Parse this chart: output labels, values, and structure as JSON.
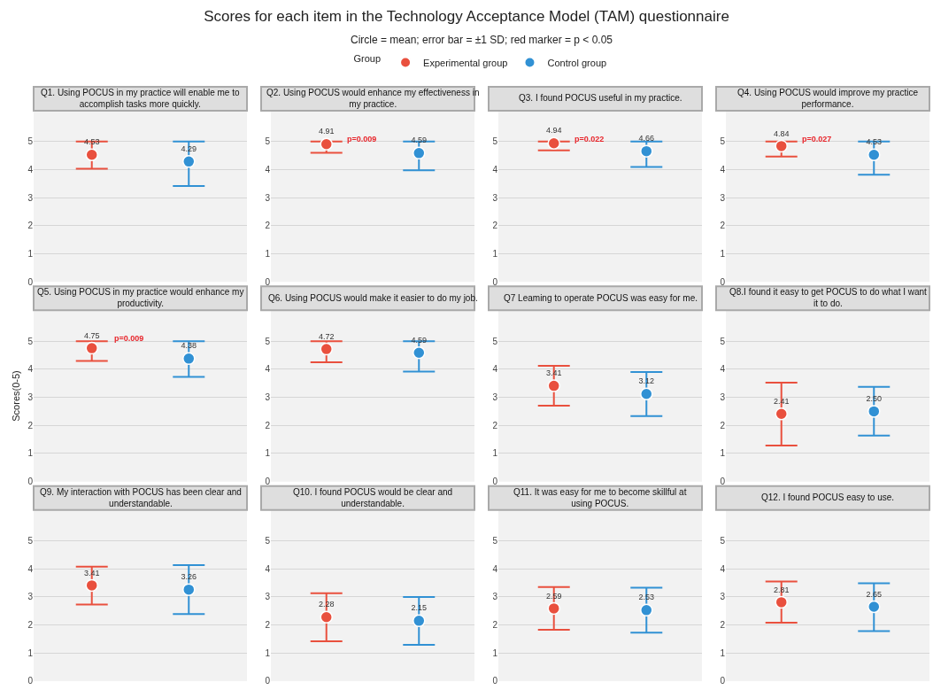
{
  "chart_data": [
    {
      "type": "other",
      "title": "Scores for each item in the Technology Acceptance Model (TAM) questionnaire",
      "subtitle": "Circle = mean; error bar = ±1 SD; red marker = p < 0.05"
    },
    {
      "type": "scatter",
      "title": "Q1. Using POCUS in my practice will enable me to accomplish tasks more quickly.",
      "categories": [
        null,
        null
      ],
      "legend_title": "Group",
      "legend": "top",
      "marker": "circle",
      "grid": "y",
      "data_labels": true,
      "ylim": [
        0,
        6.1
      ],
      "yticks": [
        0,
        1,
        2,
        3,
        4,
        5
      ],
      "series": [
        {
          "name": "Experimental group",
          "color": "#e9503e",
          "values": [
            4.53,
            null
          ],
          "errors": [
            [
              4.03,
              5
            ],
            null
          ]
        },
        {
          "name": "Control group",
          "color": "#3191d4",
          "values": [
            null,
            4.29
          ],
          "errors": [
            null,
            [
              3.42,
              5
            ]
          ]
        }
      ]
    },
    {
      "type": "scatter",
      "title": "Q2. Using POCUS would enhance my effectiveness in my practice.",
      "categories": [
        null,
        null
      ],
      "marker": "circle",
      "grid": "y",
      "data_labels": true,
      "ylim": [
        0,
        6.1
      ],
      "yticks": [
        0,
        1,
        2,
        3,
        4,
        5
      ],
      "annotations": [
        "p=0.009"
      ],
      "series": [
        {
          "name": "Experimental group",
          "color": "#e9503e",
          "values": [
            4.91,
            null
          ],
          "errors": [
            [
              4.6,
              5
            ],
            null
          ]
        },
        {
          "name": "Control group",
          "color": "#3191d4",
          "values": [
            null,
            4.59
          ],
          "errors": [
            null,
            [
              3.98,
              5
            ]
          ]
        }
      ]
    },
    {
      "type": "scatter",
      "title": "Q3. I found POCUS useful in my practice.",
      "categories": [
        null,
        null
      ],
      "marker": "circle",
      "grid": "y",
      "data_labels": true,
      "ylim": [
        0,
        6.1
      ],
      "yticks": [
        0,
        1,
        2,
        3,
        4,
        5
      ],
      "annotations": [
        "p=0.022"
      ],
      "series": [
        {
          "name": "Experimental group",
          "color": "#e9503e",
          "values": [
            4.94,
            null
          ],
          "errors": [
            [
              4.69,
              5
            ],
            null
          ]
        },
        {
          "name": "Control group",
          "color": "#3191d4",
          "values": [
            null,
            4.66
          ],
          "errors": [
            null,
            [
              4.1,
              5
            ]
          ]
        }
      ]
    },
    {
      "type": "scatter",
      "title": "Q4. Using POCUS would improve my practice performance.",
      "categories": [
        null,
        null
      ],
      "marker": "circle",
      "grid": "y",
      "data_labels": true,
      "ylim": [
        0,
        6.1
      ],
      "yticks": [
        0,
        1,
        2,
        3,
        4,
        5
      ],
      "annotations": [
        "p=0.027"
      ],
      "series": [
        {
          "name": "Experimental group",
          "color": "#e9503e",
          "values": [
            4.84,
            null
          ],
          "errors": [
            [
              4.47,
              5
            ],
            null
          ]
        },
        {
          "name": "Control group",
          "color": "#3191d4",
          "values": [
            null,
            4.53
          ],
          "errors": [
            null,
            [
              3.82,
              5
            ]
          ]
        }
      ]
    },
    {
      "type": "scatter",
      "title": "Q5. Using POCUS in my practice would enhance my productivity.",
      "categories": [
        null,
        null
      ],
      "ylabel": "Scores(0-5)",
      "marker": "circle",
      "grid": "y",
      "data_labels": true,
      "ylim": [
        0,
        6.1
      ],
      "yticks": [
        0,
        1,
        2,
        3,
        4,
        5
      ],
      "annotations": [
        "p=0.009"
      ],
      "series": [
        {
          "name": "Experimental group",
          "color": "#e9503e",
          "values": [
            4.75,
            null
          ],
          "errors": [
            [
              4.3,
              5
            ],
            null
          ]
        },
        {
          "name": "Control group",
          "color": "#3191d4",
          "values": [
            null,
            4.38
          ],
          "errors": [
            null,
            [
              3.73,
              5
            ]
          ]
        }
      ]
    },
    {
      "type": "scatter",
      "title": "Q6. Using POCUS would make it easier to do my job.",
      "categories": [
        null,
        null
      ],
      "marker": "circle",
      "grid": "y",
      "data_labels": true,
      "ylim": [
        0,
        6.1
      ],
      "yticks": [
        0,
        1,
        2,
        3,
        4,
        5
      ],
      "series": [
        {
          "name": "Experimental group",
          "color": "#e9503e",
          "values": [
            4.72,
            null
          ],
          "errors": [
            [
              4.25,
              5
            ],
            null
          ]
        },
        {
          "name": "Control group",
          "color": "#3191d4",
          "values": [
            null,
            4.59
          ],
          "errors": [
            null,
            [
              3.92,
              5
            ]
          ]
        }
      ]
    },
    {
      "type": "scatter",
      "title": "Q7 Leaming to operate POCUS was easy for me.",
      "categories": [
        null,
        null
      ],
      "marker": "circle",
      "grid": "y",
      "data_labels": true,
      "ylim": [
        0,
        6.1
      ],
      "yticks": [
        0,
        1,
        2,
        3,
        4,
        5
      ],
      "series": [
        {
          "name": "Experimental group",
          "color": "#e9503e",
          "values": [
            3.41,
            null
          ],
          "errors": [
            [
              2.7,
              4.12
            ],
            null
          ]
        },
        {
          "name": "Control group",
          "color": "#3191d4",
          "values": [
            null,
            3.12
          ],
          "errors": [
            null,
            [
              2.33,
              3.9
            ]
          ]
        }
      ]
    },
    {
      "type": "scatter",
      "title": "Q8.I found it easy to get POCUS to do what I want it to do.",
      "categories": [
        null,
        null
      ],
      "marker": "circle",
      "grid": "y",
      "ylim": [
        0,
        6.1
      ],
      "yticks": [
        0,
        1,
        2,
        3,
        4,
        5
      ],
      "series": [
        {
          "name": "Experimental group",
          "color": "#e9503e",
          "values": [
            2.41,
            null
          ],
          "value_labels": [
            "2.41",
            null
          ],
          "errors": [
            [
              1.28,
              3.52
            ],
            null
          ]
        },
        {
          "name": "Control group",
          "color": "#3191d4",
          "values": [
            null,
            2.5
          ],
          "value_labels": [
            null,
            "2.50"
          ],
          "errors": [
            null,
            [
              1.64,
              3.37
            ]
          ]
        }
      ]
    },
    {
      "type": "scatter",
      "title": "Q9. My interaction with POCUS has been clear and understandable.",
      "categories": [
        null,
        null
      ],
      "marker": "circle",
      "grid": "y",
      "data_labels": true,
      "ylim": [
        0,
        6.1
      ],
      "yticks": [
        0,
        1,
        2,
        3,
        4,
        5
      ],
      "series": [
        {
          "name": "Experimental group",
          "color": "#e9503e",
          "values": [
            3.41,
            null
          ],
          "errors": [
            [
              2.73,
              4.08
            ],
            null
          ]
        },
        {
          "name": "Control group",
          "color": "#3191d4",
          "values": [
            null,
            3.26
          ],
          "errors": [
            null,
            [
              2.39,
              4.13
            ]
          ]
        }
      ]
    },
    {
      "type": "scatter",
      "title": "Q10. I found POCUS would be clear and understandable.",
      "categories": [
        null,
        null
      ],
      "marker": "circle",
      "grid": "y",
      "data_labels": true,
      "ylim": [
        0,
        6.1
      ],
      "yticks": [
        0,
        1,
        2,
        3,
        4,
        5
      ],
      "series": [
        {
          "name": "Experimental group",
          "color": "#e9503e",
          "values": [
            2.28,
            null
          ],
          "errors": [
            [
              1.42,
              3.13
            ],
            null
          ]
        },
        {
          "name": "Control group",
          "color": "#3191d4",
          "values": [
            null,
            2.15
          ],
          "errors": [
            null,
            [
              1.29,
              3.0
            ]
          ]
        }
      ]
    },
    {
      "type": "scatter",
      "title": "Q11. It was easy for me to become skillful at using POCUS.",
      "categories": [
        null,
        null
      ],
      "marker": "circle",
      "grid": "y",
      "data_labels": true,
      "ylim": [
        0,
        6.1
      ],
      "yticks": [
        0,
        1,
        2,
        3,
        4,
        5
      ],
      "series": [
        {
          "name": "Experimental group",
          "color": "#e9503e",
          "values": [
            2.59,
            null
          ],
          "errors": [
            [
              1.83,
              3.35
            ],
            null
          ]
        },
        {
          "name": "Control group",
          "color": "#3191d4",
          "values": [
            null,
            2.53
          ],
          "errors": [
            null,
            [
              1.73,
              3.33
            ]
          ]
        }
      ]
    },
    {
      "type": "scatter",
      "title": "Q12. I found POCUS easy to use.",
      "categories": [
        null,
        null
      ],
      "marker": "circle",
      "grid": "y",
      "data_labels": true,
      "ylim": [
        0,
        6.1
      ],
      "yticks": [
        0,
        1,
        2,
        3,
        4,
        5
      ],
      "series": [
        {
          "name": "Experimental group",
          "color": "#e9503e",
          "values": [
            2.81,
            null
          ],
          "errors": [
            [
              2.08,
              3.55
            ],
            null
          ]
        },
        {
          "name": "Control group",
          "color": "#3191d4",
          "values": [
            null,
            2.65
          ],
          "errors": [
            null,
            [
              1.78,
              3.49
            ]
          ]
        }
      ]
    }
  ]
}
